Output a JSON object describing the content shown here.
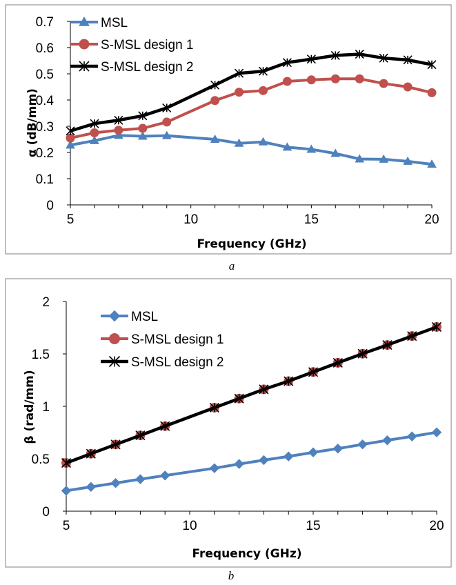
{
  "chart_data": [
    {
      "type": "line",
      "caption": "a",
      "xlabel": "Frequency (GHz)",
      "ylabel": "α (dB/mm)",
      "xlim": [
        5,
        20
      ],
      "ylim": [
        0,
        0.7
      ],
      "xticks": [
        "5",
        "10",
        "15",
        "20"
      ],
      "yticks": [
        "0",
        "0.1",
        "0.2",
        "0.3",
        "0.4",
        "0.5",
        "0.6",
        "0.7"
      ],
      "grid": false,
      "legend": "top-left",
      "x": [
        5,
        6,
        7,
        8,
        9,
        11,
        12,
        13,
        14,
        15,
        16,
        17,
        18,
        19,
        20
      ],
      "series": [
        {
          "name": "MSL",
          "marker": "triangle",
          "color": "#4f81bd",
          "values": [
            0.228,
            0.245,
            0.265,
            0.262,
            0.264,
            0.25,
            0.235,
            0.24,
            0.22,
            0.212,
            0.196,
            0.175,
            0.174,
            0.166,
            0.155
          ]
        },
        {
          "name": "S-MSL design 1",
          "marker": "circle",
          "color": "#c0504d",
          "values": [
            0.255,
            0.275,
            0.285,
            0.292,
            0.316,
            0.398,
            0.43,
            0.436,
            0.471,
            0.477,
            0.481,
            0.481,
            0.463,
            0.45,
            0.428
          ]
        },
        {
          "name": "S-MSL design 2",
          "marker": "star",
          "color": "#000000",
          "values": [
            0.282,
            0.31,
            0.323,
            0.34,
            0.37,
            0.457,
            0.502,
            0.51,
            0.543,
            0.556,
            0.57,
            0.575,
            0.56,
            0.553,
            0.535
          ]
        }
      ]
    },
    {
      "type": "line",
      "caption": "b",
      "xlabel": "Frequency (GHz)",
      "ylabel": "β (rad/mm)",
      "xlim": [
        5,
        20
      ],
      "ylim": [
        0,
        2
      ],
      "xticks": [
        "5",
        "10",
        "15",
        "20"
      ],
      "yticks": [
        "0",
        "0.5",
        "1",
        "1.5",
        "2"
      ],
      "grid": false,
      "legend": "top-left",
      "x": [
        5,
        6,
        7,
        8,
        9,
        11,
        12,
        13,
        14,
        15,
        16,
        17,
        18,
        19,
        20
      ],
      "series": [
        {
          "name": "MSL",
          "marker": "diamond",
          "color": "#4f81bd",
          "values": [
            0.195,
            0.232,
            0.268,
            0.305,
            0.34,
            0.41,
            0.45,
            0.487,
            0.522,
            0.561,
            0.597,
            0.637,
            0.676,
            0.713,
            0.752
          ]
        },
        {
          "name": "S-MSL design 1",
          "marker": "circle",
          "color": "#c0504d",
          "values": [
            0.46,
            0.548,
            0.636,
            0.723,
            0.811,
            0.987,
            1.074,
            1.162,
            1.24,
            1.327,
            1.415,
            1.502,
            1.585,
            1.67,
            1.757
          ]
        },
        {
          "name": "S-MSL design 2",
          "marker": "star",
          "color": "#000000",
          "values": [
            0.46,
            0.548,
            0.636,
            0.723,
            0.811,
            0.987,
            1.074,
            1.162,
            1.24,
            1.327,
            1.415,
            1.502,
            1.585,
            1.67,
            1.757
          ]
        }
      ]
    }
  ]
}
